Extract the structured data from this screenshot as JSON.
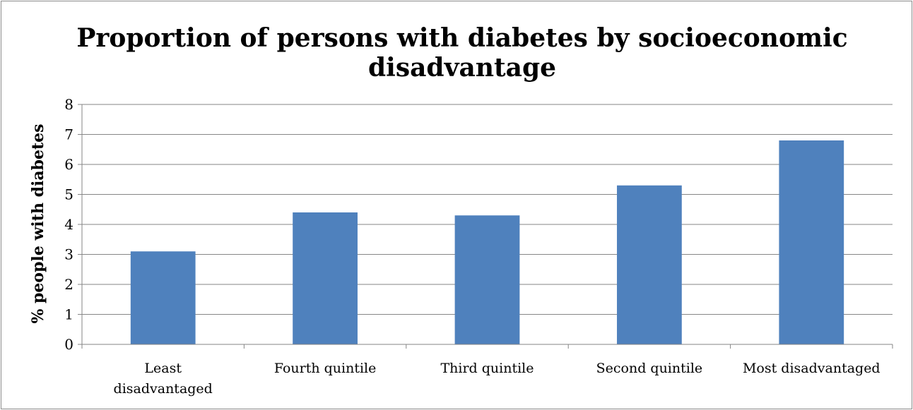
{
  "chart_data": {
    "type": "bar",
    "title": "Proportion of persons with diabetes by socioeconomic disadvantage",
    "title_lines": [
      "Proportion of persons with diabetes by socioeconomic",
      "disadvantage"
    ],
    "xlabel": "",
    "ylabel": "% people with diabetes",
    "categories": [
      "Least disadvantaged",
      "Fourth quintile",
      "Third quintile",
      "Second quintile",
      "Most disadvantaged"
    ],
    "category_lines": [
      [
        "Least",
        "disadvantaged"
      ],
      [
        "Fourth quintile"
      ],
      [
        "Third quintile"
      ],
      [
        "Second quintile"
      ],
      [
        "Most disadvantaged"
      ]
    ],
    "values": [
      3.1,
      4.4,
      4.3,
      5.3,
      6.8
    ],
    "ylim": [
      0,
      8
    ],
    "yticks": [
      0,
      1,
      2,
      3,
      4,
      5,
      6,
      7,
      8
    ],
    "grid": true,
    "legend": "none",
    "bar_color": "#4f81bd",
    "grid_color": "#868686"
  }
}
